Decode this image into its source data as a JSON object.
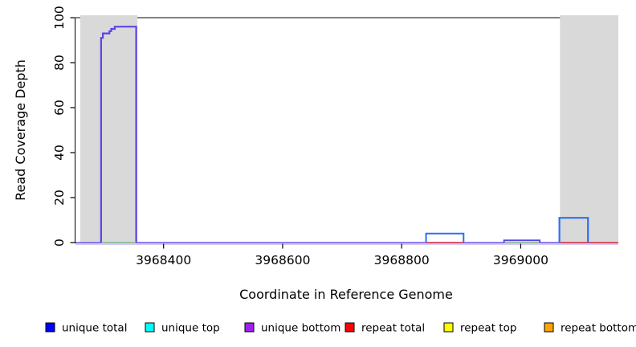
{
  "chart_data": {
    "type": "line",
    "subtype": "step-coverage",
    "title": "",
    "xlabel": "Coordinate in Reference Genome",
    "ylabel": "Read Coverage Depth",
    "xlim": [
      3968252,
      3969164
    ],
    "ylim": [
      0,
      100
    ],
    "x_ticks": [
      3968400,
      3968600,
      3968800,
      3969000
    ],
    "y_ticks": [
      0,
      20,
      40,
      60,
      80,
      100
    ],
    "grid": false,
    "top_rule": {
      "y": 100,
      "color": "#5a5a5a"
    },
    "shaded_regions": [
      {
        "x0": 3968260,
        "x1": 3968356,
        "color": "#d9d9d9"
      },
      {
        "x0": 3969066,
        "x1": 3969164,
        "color": "#d9d9d9"
      }
    ],
    "legend": {
      "position": "bottom",
      "items": [
        {
          "label": "unique total",
          "color": "#0000FF"
        },
        {
          "label": "unique top",
          "color": "#00FFFF"
        },
        {
          "label": "unique bottom",
          "color": "#A020F0"
        },
        {
          "label": "repeat total",
          "color": "#FF0000"
        },
        {
          "label": "repeat top",
          "color": "#FFFF00"
        },
        {
          "label": "repeat bottom",
          "color": "#FFA500"
        }
      ]
    },
    "series": [
      {
        "name": "unique total",
        "color": "#0000FF",
        "steps": [
          [
            3968252,
            0
          ],
          [
            3968295,
            91
          ],
          [
            3968298,
            93
          ],
          [
            3968309,
            94
          ],
          [
            3968312,
            95
          ],
          [
            3968318,
            96
          ],
          [
            3968354,
            0
          ],
          [
            3968841,
            4
          ],
          [
            3968904,
            0
          ],
          [
            3968972,
            1
          ],
          [
            3969032,
            0
          ],
          [
            3969065,
            11
          ],
          [
            3969113,
            0
          ],
          [
            3969164,
            0
          ]
        ]
      },
      {
        "name": "unique top",
        "color": "#00FFFF",
        "steps": [
          [
            3968252,
            0
          ],
          [
            3968841,
            4
          ],
          [
            3968904,
            0
          ],
          [
            3969065,
            11
          ],
          [
            3969113,
            0
          ],
          [
            3969164,
            0
          ]
        ]
      },
      {
        "name": "unique bottom",
        "color": "#A020F0",
        "steps": [
          [
            3968252,
            0
          ],
          [
            3968295,
            91
          ],
          [
            3968298,
            93
          ],
          [
            3968309,
            94
          ],
          [
            3968312,
            95
          ],
          [
            3968318,
            96
          ],
          [
            3968354,
            0
          ],
          [
            3968972,
            1
          ],
          [
            3969032,
            0
          ],
          [
            3969164,
            0
          ]
        ]
      },
      {
        "name": "repeat total",
        "color": "#FF0000",
        "steps": [
          [
            3968252,
            0
          ],
          [
            3969164,
            0
          ]
        ]
      },
      {
        "name": "repeat top",
        "color": "#FFFF00",
        "steps": [
          [
            3968252,
            0
          ],
          [
            3969164,
            0
          ]
        ]
      },
      {
        "name": "repeat bottom",
        "color": "#FFA500",
        "steps": [
          [
            3968252,
            0
          ],
          [
            3969164,
            0
          ]
        ]
      }
    ],
    "render_segments": [
      {
        "kind": "hline",
        "color": "#c9bcf4",
        "width": 1.4,
        "y": 0,
        "dy": 2.0,
        "x0": 3968252,
        "x1": 3969164
      },
      {
        "kind": "hline",
        "color": "#6b50e8",
        "width": 1.6,
        "y": 0,
        "dy": 0,
        "x0": 3968252,
        "x1": 3969164
      },
      {
        "kind": "hline",
        "color": "#e03c3c",
        "width": 1.4,
        "y": 0,
        "dy": 0,
        "x0": 3968841,
        "x1": 3968904
      },
      {
        "kind": "hline",
        "color": "#e03c3c",
        "width": 1.4,
        "y": 0,
        "dy": 0,
        "x0": 3969065,
        "x1": 3969164
      },
      {
        "kind": "hline",
        "color": "#8fcc8f",
        "width": 1.5,
        "y": 0,
        "dy": 0,
        "x0": 3968295,
        "x1": 3968354
      },
      {
        "kind": "hline",
        "color": "#8fcc8f",
        "width": 1.5,
        "y": 0,
        "dy": 0,
        "x0": 3968972,
        "x1": 3969032
      },
      {
        "kind": "box",
        "color": "#5b44e6",
        "width": 2.2,
        "x1": 3968354,
        "top_steps": [
          [
            3968295,
            91
          ],
          [
            3968298,
            93
          ],
          [
            3968309,
            94
          ],
          [
            3968312,
            95
          ],
          [
            3968318,
            96
          ]
        ]
      },
      {
        "kind": "box",
        "color": "#5b44e6",
        "width": 2.0,
        "x1": 3969032,
        "top_steps": [
          [
            3968972,
            1
          ]
        ]
      },
      {
        "kind": "box",
        "color": "#2e70f0",
        "width": 2.0,
        "x1": 3968904,
        "top_steps": [
          [
            3968841,
            4
          ]
        ]
      },
      {
        "kind": "box",
        "color": "#2e70f0",
        "width": 2.2,
        "x1": 3969113,
        "top_steps": [
          [
            3969065,
            11
          ]
        ]
      }
    ]
  }
}
